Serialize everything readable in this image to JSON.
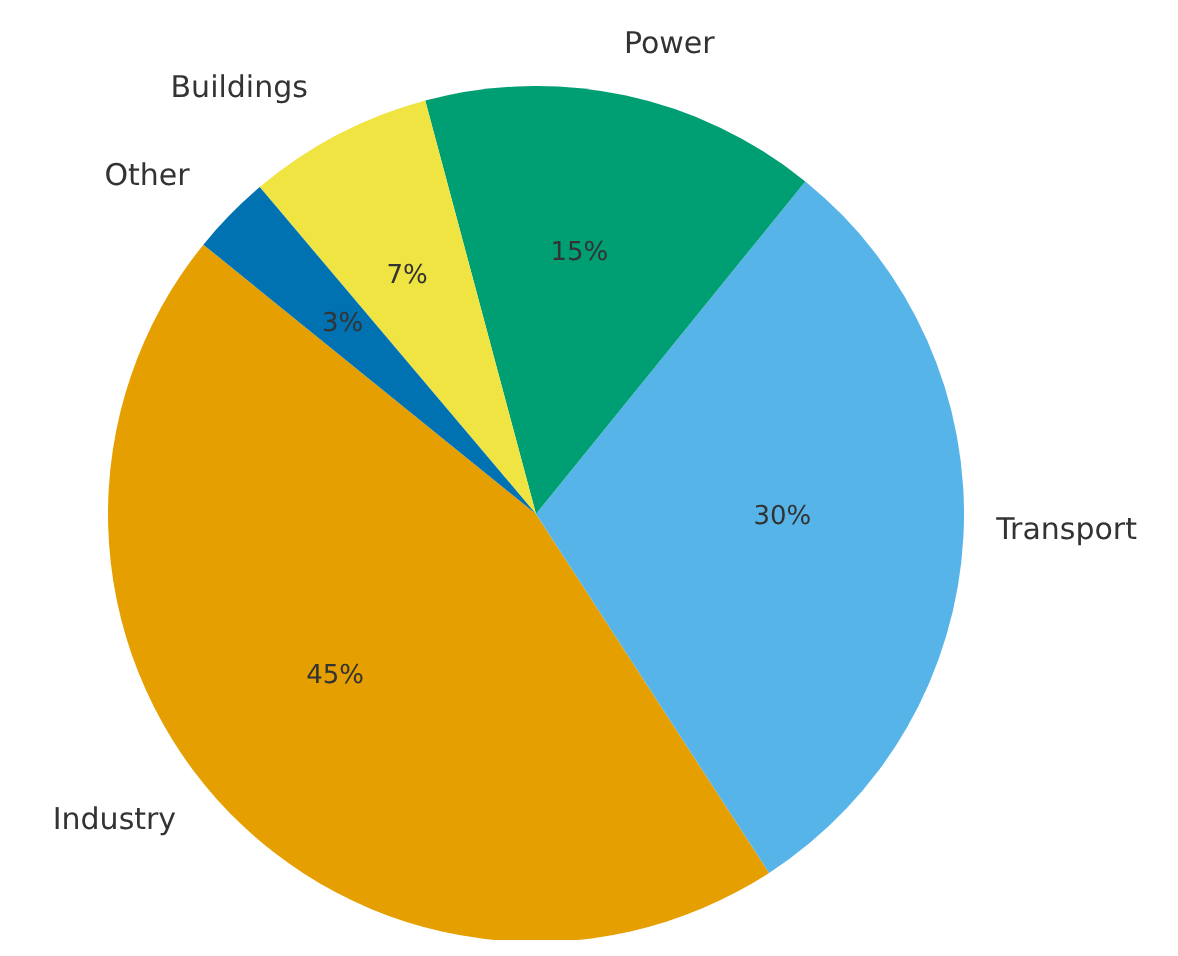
{
  "chart_data": {
    "type": "pie",
    "categories": [
      "Industry",
      "Transport",
      "Power",
      "Buildings",
      "Other"
    ],
    "values": [
      45,
      30,
      15,
      7,
      3
    ],
    "colors": [
      "#e69f00",
      "#56b4e9",
      "#009e73",
      "#f0e442",
      "#0072b2"
    ],
    "value_labels": [
      "45%",
      "30%",
      "15%",
      "7%",
      "3%"
    ]
  }
}
